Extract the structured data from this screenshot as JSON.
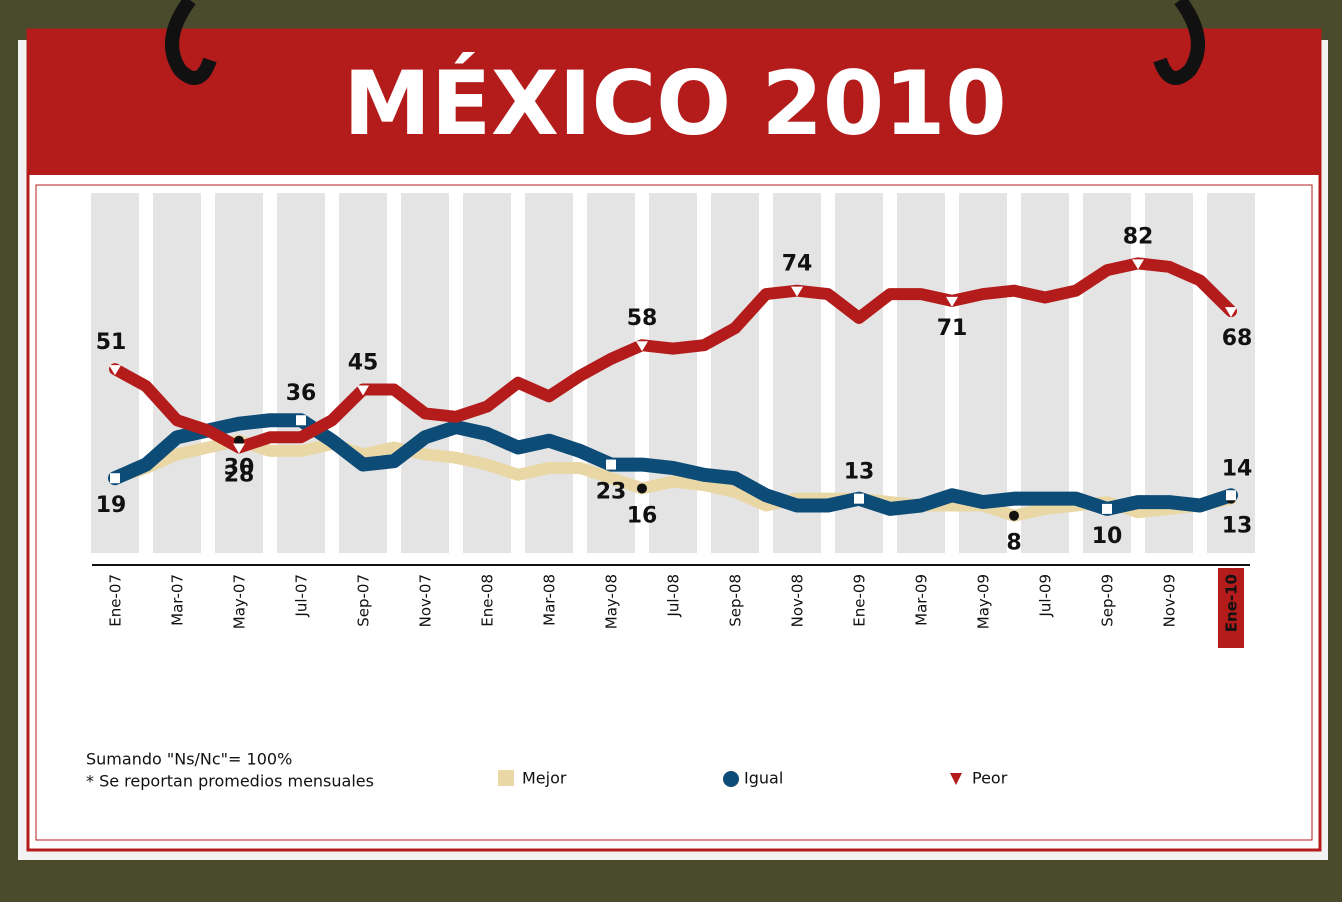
{
  "chart_data": {
    "type": "line",
    "title": "MÉXICO 2010",
    "notes": [
      "Sumando \"Ns/Nc\"= 100%",
      "* Se reportan promedios mensuales"
    ],
    "categories": [
      "Ene-07",
      null,
      "Mar-07",
      null,
      "May-07",
      null,
      "Jul-07",
      null,
      "Sep-07",
      null,
      "Nov-07",
      null,
      "Ene-08",
      null,
      "Mar-08",
      null,
      "May-08",
      null,
      "Jul-08",
      null,
      "Sep-08",
      null,
      "Nov-08",
      null,
      "Ene-09",
      null,
      "Mar-09",
      null,
      "May-09",
      null,
      "Jul-09",
      null,
      "Sep-09",
      null,
      "Nov-09",
      null,
      "Ene-10"
    ],
    "ylim": [
      0,
      100
    ],
    "series": [
      {
        "name": "Mejor",
        "color": "#e9d7a6",
        "marker": "circle",
        "labeled_points": [
          4,
          17,
          29,
          36
        ],
        "values": [
          19,
          22,
          26,
          28,
          30,
          27,
          27,
          29,
          26,
          28,
          26,
          25,
          23,
          20,
          22,
          22,
          19,
          16,
          18,
          17,
          15,
          11,
          13,
          13,
          13,
          12,
          11,
          11,
          11,
          8,
          10,
          11,
          12,
          9,
          10,
          11,
          13
        ]
      },
      {
        "name": "Igual",
        "color": "#0e4c78",
        "marker": "square",
        "labeled_points": [
          0,
          6,
          16,
          24,
          32,
          36
        ],
        "values": [
          19,
          23,
          31,
          33,
          35,
          36,
          36,
          30,
          23,
          24,
          31,
          34,
          32,
          28,
          30,
          27,
          23,
          23,
          22,
          20,
          19,
          14,
          11,
          11,
          13,
          10,
          11,
          14,
          12,
          13,
          13,
          13,
          10,
          12,
          12,
          11,
          14
        ]
      },
      {
        "name": "Peor",
        "color": "#b41c1c",
        "marker": "triangle",
        "labeled_points": [
          0,
          4,
          8,
          17,
          22,
          27,
          33,
          36
        ],
        "values": [
          51,
          46,
          36,
          33,
          28,
          31,
          31,
          36,
          45,
          45,
          38,
          37,
          40,
          47,
          43,
          49,
          54,
          58,
          57,
          58,
          63,
          73,
          74,
          73,
          66,
          73,
          73,
          71,
          73,
          74,
          72,
          74,
          80,
          82,
          81,
          77,
          68
        ]
      }
    ]
  }
}
